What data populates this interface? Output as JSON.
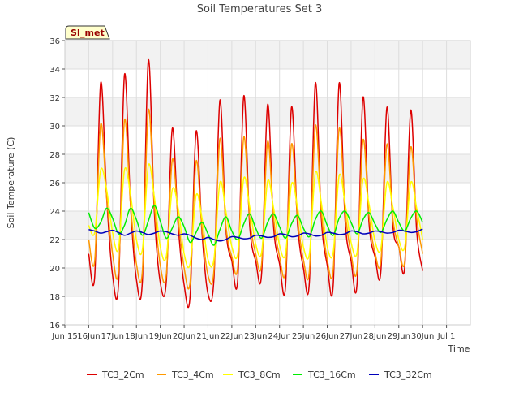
{
  "chart_data": {
    "type": "line",
    "title": "Soil Temperatures Set 3",
    "xlabel": "Time",
    "ylabel": "Soil Temperature (C)",
    "station_badge": "SI_met",
    "ylim": [
      16,
      36
    ],
    "yticks": [
      16,
      18,
      20,
      22,
      24,
      26,
      28,
      30,
      32,
      34,
      36
    ],
    "xlim": [
      15,
      32
    ],
    "xticks": [
      {
        "x": 15,
        "label": "Jun 15"
      },
      {
        "x": 16,
        "label": "16Jun"
      },
      {
        "x": 17,
        "label": "17Jun"
      },
      {
        "x": 18,
        "label": "18Jun"
      },
      {
        "x": 19,
        "label": "19Jun"
      },
      {
        "x": 20,
        "label": "20Jun"
      },
      {
        "x": 21,
        "label": "21Jun"
      },
      {
        "x": 22,
        "label": "22Jun"
      },
      {
        "x": 23,
        "label": "23Jun"
      },
      {
        "x": 24,
        "label": "24Jun"
      },
      {
        "x": 25,
        "label": "25Jun"
      },
      {
        "x": 26,
        "label": "26Jun"
      },
      {
        "x": 27,
        "label": "27Jun"
      },
      {
        "x": 28,
        "label": "28Jun"
      },
      {
        "x": 29,
        "label": "29Jun"
      },
      {
        "x": 30,
        "label": "30Jun"
      },
      {
        "x": 31,
        "label": "Jul 1"
      }
    ],
    "grid": true,
    "legend_position": "bottom",
    "x_days": [
      16.0,
      16.25,
      16.5,
      16.75,
      17.0,
      17.25,
      17.5,
      17.75,
      18.0,
      18.25,
      18.5,
      18.75,
      19.0,
      19.25,
      19.5,
      19.75,
      20.0,
      20.25,
      20.5,
      20.75,
      21.0,
      21.25,
      21.5,
      21.75,
      22.0,
      22.25,
      22.5,
      22.75,
      23.0,
      23.25,
      23.5,
      23.75,
      24.0,
      24.25,
      24.5,
      24.75,
      25.0,
      25.25,
      25.5,
      25.75,
      26.0,
      26.25,
      26.5,
      26.75,
      27.0,
      27.25,
      27.5,
      27.75,
      28.0,
      28.25,
      28.5,
      28.75,
      29.0,
      29.25,
      29.5,
      29.75,
      30.0
    ],
    "series": [
      {
        "name": "TC3_2Cm",
        "color": "#dd0000",
        "values": [
          21.0,
          19.4,
          33.0,
          25.0,
          19.5,
          18.9,
          33.6,
          24.5,
          19.2,
          19.1,
          34.6,
          24.0,
          19.0,
          19.0,
          29.8,
          23.0,
          18.8,
          18.0,
          29.6,
          22.5,
          18.2,
          19.2,
          31.8,
          22.8,
          20.5,
          19.2,
          32.1,
          23.0,
          20.5,
          19.6,
          31.5,
          22.9,
          20.3,
          18.7,
          31.3,
          23.2,
          20.0,
          19.0,
          33.0,
          23.5,
          20.2,
          18.8,
          33.0,
          23.3,
          20.5,
          18.9,
          32.0,
          23.2,
          20.8,
          19.8,
          31.3,
          23.0,
          21.5,
          20.1,
          31.1,
          22.6,
          19.8
        ]
      },
      {
        "name": "TC3_4Cm",
        "color": "#ff9900",
        "values": [
          22.0,
          20.5,
          30.1,
          25.0,
          21.0,
          19.8,
          30.4,
          24.5,
          20.3,
          19.8,
          31.1,
          24.5,
          20.2,
          19.5,
          27.6,
          23.5,
          20.0,
          19.0,
          27.5,
          22.8,
          19.5,
          19.8,
          29.1,
          23.0,
          20.8,
          20.1,
          29.2,
          23.5,
          21.0,
          20.3,
          28.9,
          23.5,
          20.8,
          19.8,
          28.7,
          23.6,
          20.6,
          19.8,
          30.0,
          24.0,
          20.6,
          19.9,
          29.8,
          24.0,
          21.0,
          19.9,
          29.0,
          23.7,
          21.1,
          20.5,
          28.7,
          23.5,
          21.5,
          20.5,
          28.5,
          23.5,
          21.0
        ]
      },
      {
        "name": "TC3_8Cm",
        "color": "#ffff00",
        "values": [
          23.0,
          22.5,
          26.9,
          25.5,
          22.5,
          21.4,
          26.9,
          25.2,
          22.0,
          21.3,
          27.2,
          25.0,
          21.5,
          20.8,
          25.5,
          24.2,
          21.0,
          20.3,
          25.1,
          23.5,
          20.6,
          20.6,
          26.0,
          24.0,
          21.5,
          21.0,
          26.3,
          24.3,
          21.7,
          21.1,
          26.1,
          24.2,
          21.6,
          21.0,
          25.9,
          24.3,
          21.5,
          21.0,
          26.7,
          24.6,
          21.5,
          21.1,
          26.5,
          24.5,
          21.8,
          21.1,
          26.2,
          24.5,
          21.9,
          21.4,
          26.0,
          24.3,
          22.0,
          21.5,
          26.0,
          24.2,
          22.0
        ]
      },
      {
        "name": "TC3_16Cm",
        "color": "#00ee00",
        "values": [
          23.9,
          22.8,
          23.2,
          24.2,
          23.5,
          22.4,
          23.0,
          24.2,
          23.4,
          22.3,
          23.3,
          24.4,
          23.3,
          22.1,
          22.8,
          23.6,
          22.9,
          21.8,
          22.5,
          23.2,
          22.4,
          21.6,
          22.7,
          23.6,
          22.6,
          22.0,
          23.1,
          23.8,
          22.8,
          22.1,
          23.2,
          23.8,
          22.9,
          22.1,
          23.1,
          23.7,
          22.8,
          22.2,
          23.4,
          24.0,
          23.0,
          22.3,
          23.5,
          24.0,
          23.2,
          22.4,
          23.4,
          23.9,
          23.1,
          22.5,
          23.4,
          24.0,
          23.2,
          22.6,
          23.5,
          24.0,
          23.2
        ]
      },
      {
        "name": "TC3_32Cm",
        "color": "#0000bb",
        "values": [
          22.7,
          22.6,
          22.45,
          22.55,
          22.65,
          22.5,
          22.3,
          22.45,
          22.6,
          22.5,
          22.35,
          22.45,
          22.6,
          22.55,
          22.4,
          22.3,
          22.4,
          22.3,
          22.1,
          22.0,
          22.15,
          22.0,
          21.9,
          22.0,
          22.2,
          22.15,
          22.05,
          22.1,
          22.3,
          22.25,
          22.15,
          22.2,
          22.4,
          22.35,
          22.2,
          22.25,
          22.45,
          22.4,
          22.25,
          22.3,
          22.5,
          22.45,
          22.35,
          22.4,
          22.6,
          22.55,
          22.4,
          22.45,
          22.6,
          22.55,
          22.45,
          22.5,
          22.65,
          22.6,
          22.5,
          22.55,
          22.75
        ]
      }
    ]
  }
}
